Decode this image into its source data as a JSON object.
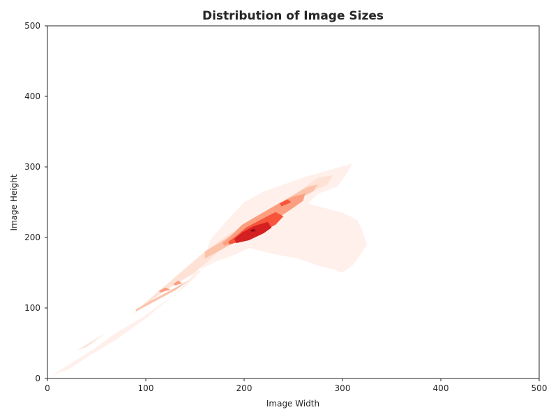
{
  "chart_data": {
    "type": "kde_contour",
    "title": "Distribution of Image Sizes",
    "xlabel": "Image Width",
    "ylabel": "Image Height",
    "xlim": [
      0,
      500
    ],
    "ylim": [
      0,
      500
    ],
    "x_ticks": [
      0,
      100,
      200,
      300,
      400,
      500
    ],
    "y_ticks": [
      0,
      100,
      200,
      300,
      400,
      500
    ],
    "grid": false,
    "legend": "none",
    "colormap": "Reds",
    "levels": [
      {
        "level": 1,
        "color": "#fff0eb",
        "regions": [
          [
            [
              5,
              5
            ],
            [
              20,
              18
            ],
            [
              45,
              40
            ],
            [
              70,
              65
            ],
            [
              95,
              85
            ],
            [
              120,
              110
            ],
            [
              140,
              130
            ],
            [
              155,
              150
            ],
            [
              160,
              170
            ],
            [
              165,
              195
            ],
            [
              180,
              220
            ],
            [
              200,
              250
            ],
            [
              220,
              265
            ],
            [
              240,
              275
            ],
            [
              260,
              285
            ],
            [
              285,
              295
            ],
            [
              310,
              305
            ],
            [
              305,
              292
            ],
            [
              295,
              272
            ],
            [
              275,
              262
            ],
            [
              265,
              248
            ],
            [
              300,
              235
            ],
            [
              315,
              225
            ],
            [
              320,
              210
            ],
            [
              325,
              190
            ],
            [
              318,
              175
            ],
            [
              310,
              160
            ],
            [
              300,
              150
            ],
            [
              290,
              155
            ],
            [
              275,
              160
            ],
            [
              255,
              170
            ],
            [
              235,
              175
            ],
            [
              220,
              180
            ],
            [
              205,
              185
            ],
            [
              190,
              175
            ],
            [
              170,
              165
            ],
            [
              150,
              150
            ],
            [
              130,
              120
            ],
            [
              100,
              85
            ],
            [
              70,
              55
            ],
            [
              40,
              30
            ],
            [
              20,
              12
            ]
          ]
        ]
      },
      {
        "level": 2,
        "color": "#fee2d6",
        "regions": [
          [
            [
              30,
              40
            ],
            [
              60,
              65
            ],
            [
              90,
              95
            ],
            [
              120,
              125
            ],
            [
              150,
              150
            ],
            [
              170,
              175
            ],
            [
              190,
              200
            ],
            [
              210,
              215
            ],
            [
              230,
              235
            ],
            [
              250,
              250
            ],
            [
              270,
              265
            ],
            [
              285,
              275
            ],
            [
              290,
              288
            ],
            [
              275,
              285
            ],
            [
              260,
              270
            ],
            [
              245,
              255
            ],
            [
              225,
              240
            ],
            [
              205,
              222
            ],
            [
              185,
              205
            ],
            [
              160,
              180
            ],
            [
              135,
              150
            ],
            [
              110,
              120
            ],
            [
              85,
              90
            ],
            [
              60,
              65
            ],
            [
              40,
              45
            ]
          ]
        ]
      },
      {
        "level": 3,
        "color": "#fcc3ab",
        "regions": [
          [
            [
              90,
              95
            ],
            [
              110,
              110
            ],
            [
              130,
              125
            ],
            [
              150,
              145
            ],
            [
              145,
              140
            ],
            [
              125,
              125
            ],
            [
              105,
              110
            ],
            [
              90,
              98
            ]
          ],
          [
            [
              160,
              170
            ],
            [
              180,
              185
            ],
            [
              200,
              200
            ],
            [
              220,
              220
            ],
            [
              240,
              240
            ],
            [
              255,
              255
            ],
            [
              270,
              265
            ],
            [
              275,
              275
            ],
            [
              265,
              272
            ],
            [
              250,
              260
            ],
            [
              235,
              248
            ],
            [
              215,
              228
            ],
            [
              195,
              212
            ],
            [
              178,
              195
            ],
            [
              160,
              180
            ]
          ]
        ]
      },
      {
        "level": 4,
        "color": "#fc9f81",
        "regions": [
          [
            [
              115,
              122
            ],
            [
              125,
              126
            ],
            [
              120,
              129
            ],
            [
              113,
              124
            ]
          ],
          [
            [
              130,
              132
            ],
            [
              137,
              135
            ],
            [
              133,
              139
            ],
            [
              128,
              134
            ]
          ],
          [
            [
              180,
              188
            ],
            [
              195,
              198
            ],
            [
              215,
              212
            ],
            [
              235,
              228
            ],
            [
              250,
              242
            ],
            [
              260,
              252
            ],
            [
              262,
              262
            ],
            [
              250,
              258
            ],
            [
              235,
              248
            ],
            [
              215,
              232
            ],
            [
              198,
              218
            ],
            [
              185,
              200
            ],
            [
              178,
              192
            ]
          ]
        ]
      },
      {
        "level": 5,
        "color": "#f6553c",
        "regions": [
          [
            [
              185,
              190
            ],
            [
              200,
              196
            ],
            [
              218,
              208
            ],
            [
              232,
              218
            ],
            [
              240,
              230
            ],
            [
              232,
              236
            ],
            [
              218,
              226
            ],
            [
              202,
              214
            ],
            [
              190,
              200
            ],
            [
              184,
              194
            ]
          ],
          [
            [
              238,
              244
            ],
            [
              248,
              250
            ],
            [
              244,
              254
            ],
            [
              236,
              248
            ]
          ]
        ]
      },
      {
        "level": 6,
        "color": "#d42020",
        "regions": [
          [
            [
              192,
              192
            ],
            [
              205,
              196
            ],
            [
              220,
              206
            ],
            [
              228,
              214
            ],
            [
              224,
              222
            ],
            [
              210,
              216
            ],
            [
              198,
              207
            ],
            [
              190,
              198
            ]
          ]
        ]
      },
      {
        "level": 7,
        "color": "#8b0d14",
        "regions": [
          [
            [
              208,
              208
            ],
            [
              212,
              209
            ],
            [
              210,
              212
            ],
            [
              206,
              210
            ]
          ]
        ]
      }
    ]
  }
}
